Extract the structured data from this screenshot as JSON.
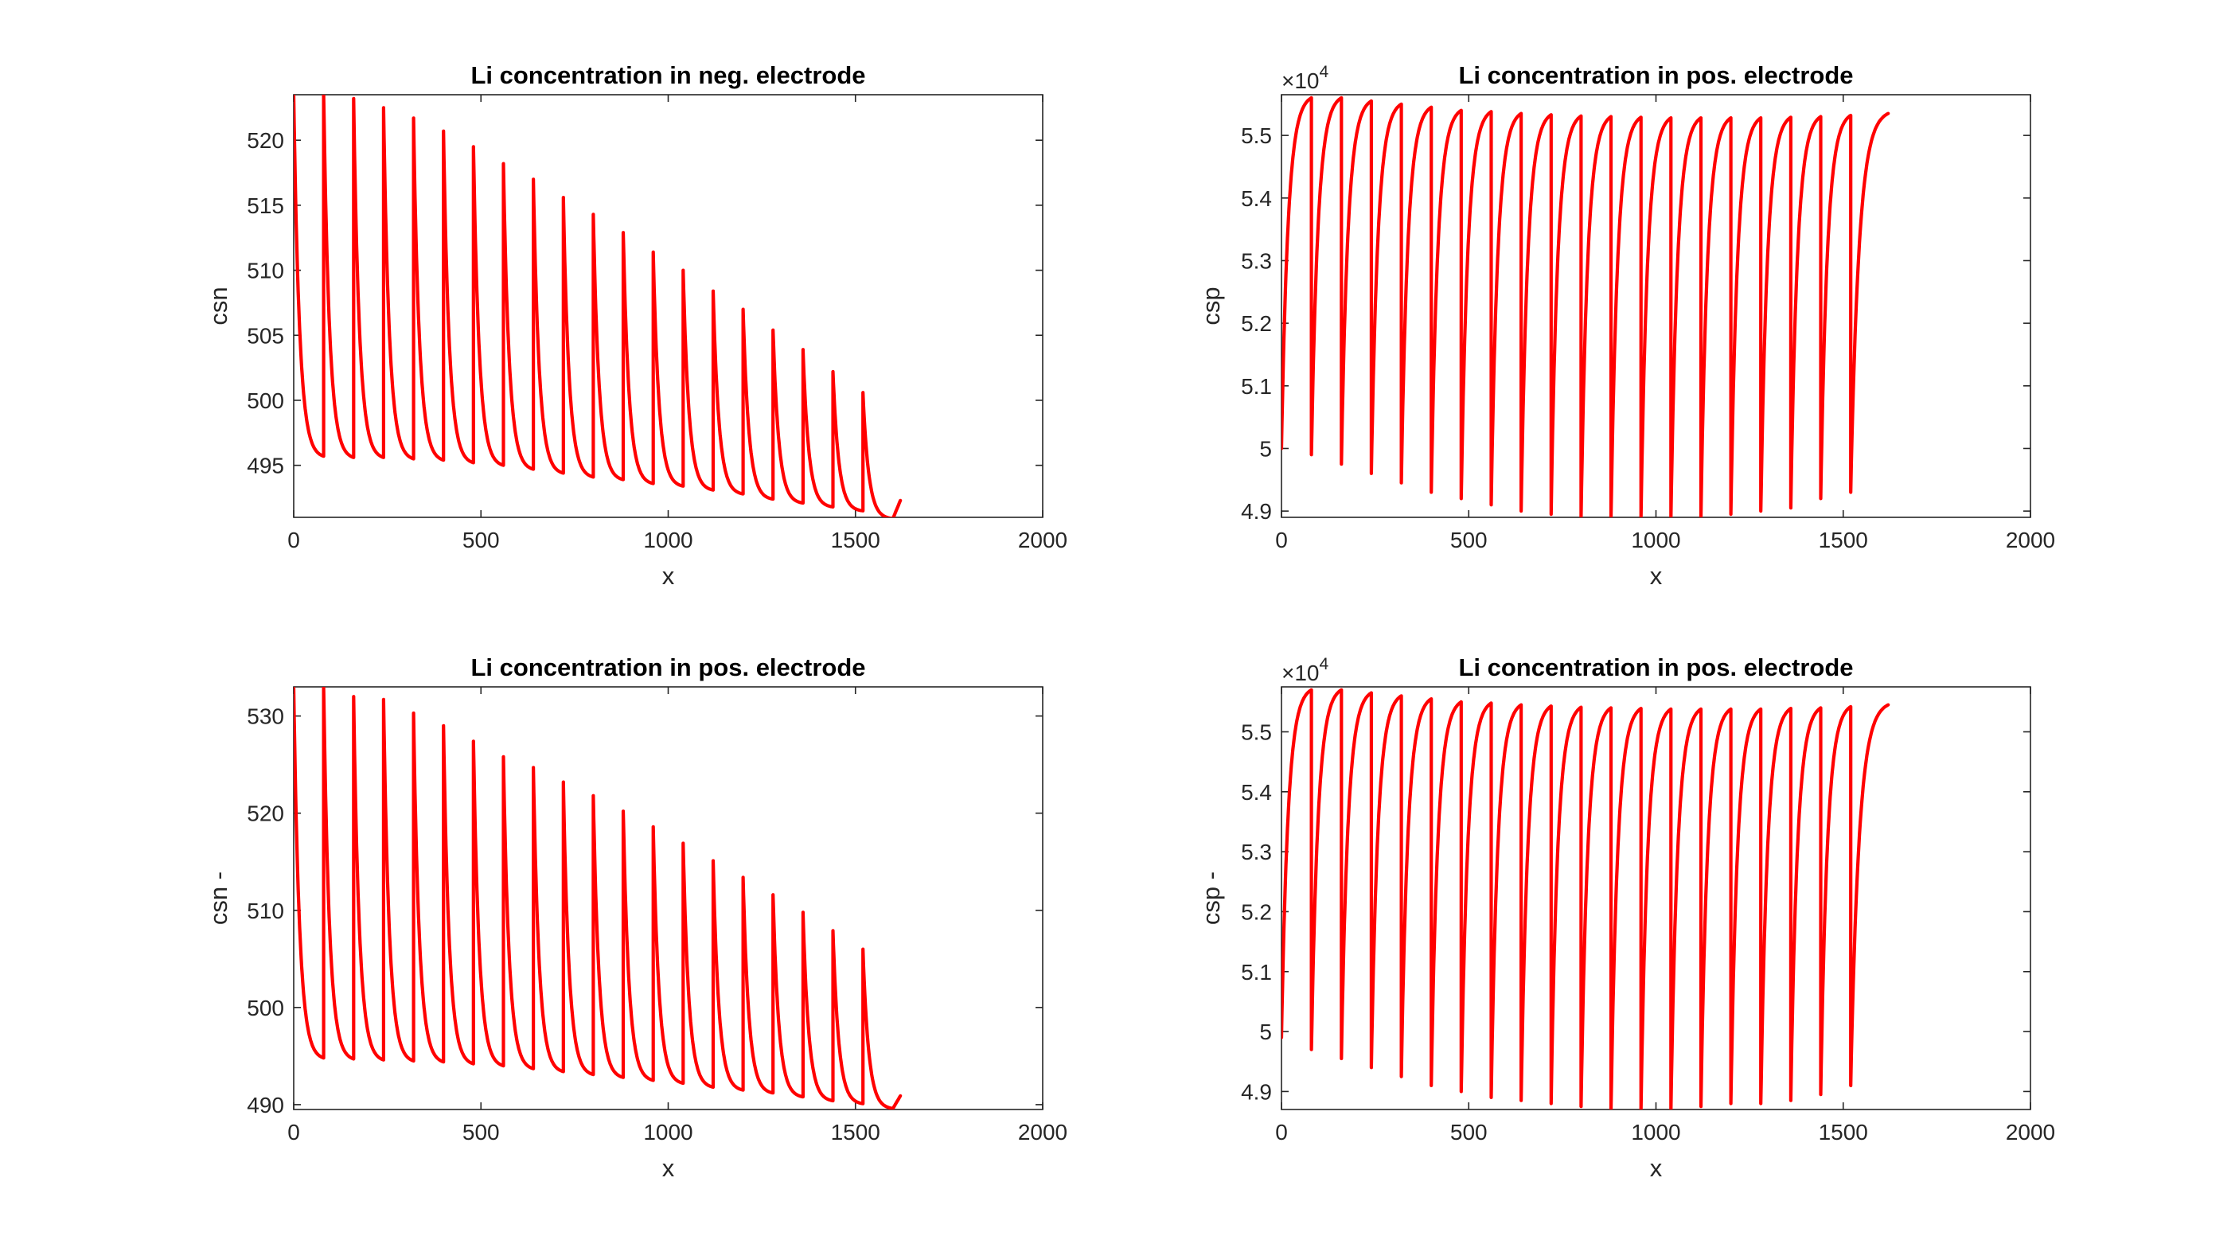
{
  "colors": {
    "line": "#ff0000",
    "axes": "#262626",
    "background": "#ffffff"
  },
  "chart_data": [
    {
      "type": "line",
      "title": "Li concentration in neg. electrode",
      "xlabel": "x",
      "ylabel": "csn",
      "exponent": "",
      "xlim": [
        0,
        2000
      ],
      "ylim": [
        491,
        523.5
      ],
      "xticks": [
        0,
        500,
        1000,
        1500,
        2000
      ],
      "xtick_labels": [
        "0",
        "500",
        "1000",
        "1500",
        "2000"
      ],
      "yticks": [
        495,
        500,
        505,
        510,
        515,
        520
      ],
      "ytick_labels": [
        "495",
        "500",
        "505",
        "510",
        "515",
        "520"
      ],
      "grid": false,
      "legend": "none",
      "waveform": "decay",
      "x_end": 1620,
      "series": [
        {
          "cycle_start_x": [
            0,
            80,
            160,
            240,
            320,
            400,
            480,
            560,
            640,
            720,
            800,
            880,
            960,
            1040,
            1120,
            1200,
            1280,
            1360,
            1440,
            1520
          ],
          "cycle_peak": [
            523.5,
            523.6,
            523.2,
            522.5,
            521.7,
            520.7,
            519.5,
            518.2,
            517.0,
            515.6,
            514.3,
            512.9,
            511.4,
            510.0,
            508.4,
            507.0,
            505.4,
            503.9,
            502.2,
            500.6
          ],
          "cycle_trough": [
            495.7,
            495.6,
            495.6,
            495.5,
            495.4,
            495.2,
            495.0,
            494.7,
            494.4,
            494.1,
            493.9,
            493.6,
            493.4,
            493.1,
            492.8,
            492.4,
            492.1,
            491.8,
            491.5,
            490.9
          ],
          "final_y": 492.3
        }
      ]
    },
    {
      "type": "line",
      "title": "Li concentration in pos. electrode",
      "xlabel": "x",
      "ylabel": "csp",
      "exponent": "×10",
      "exponent_power": "4",
      "xlim": [
        0,
        2000
      ],
      "ylim": [
        4.89,
        5.565
      ],
      "xticks": [
        0,
        500,
        1000,
        1500,
        2000
      ],
      "xtick_labels": [
        "0",
        "500",
        "1000",
        "1500",
        "2000"
      ],
      "yticks": [
        4.9,
        5.0,
        5.1,
        5.2,
        5.3,
        5.4,
        5.5
      ],
      "ytick_labels": [
        "4.9",
        "5",
        "5.1",
        "5.2",
        "5.3",
        "5.4",
        "5.5"
      ],
      "grid": false,
      "legend": "none",
      "waveform": "rise",
      "x_end": 1620,
      "series": [
        {
          "cycle_start_x": [
            0,
            80,
            160,
            240,
            320,
            400,
            480,
            560,
            640,
            720,
            800,
            880,
            960,
            1040,
            1120,
            1200,
            1280,
            1360,
            1440,
            1520
          ],
          "cycle_trough": [
            5.0,
            4.99,
            4.975,
            4.96,
            4.945,
            4.93,
            4.92,
            4.91,
            4.9,
            4.895,
            4.89,
            4.89,
            4.89,
            4.89,
            4.89,
            4.895,
            4.9,
            4.905,
            4.92,
            4.93
          ],
          "cycle_peak": [
            5.56,
            5.56,
            5.555,
            5.55,
            5.545,
            5.54,
            5.538,
            5.535,
            5.533,
            5.531,
            5.53,
            5.529,
            5.528,
            5.528,
            5.528,
            5.528,
            5.529,
            5.53,
            5.532,
            5.535
          ]
        }
      ]
    },
    {
      "type": "line",
      "title": "Li concentration in pos. electrode",
      "xlabel": "x",
      "ylabel": "csn -",
      "exponent": "",
      "xlim": [
        0,
        2000
      ],
      "ylim": [
        489.5,
        533
      ],
      "xticks": [
        0,
        500,
        1000,
        1500,
        2000
      ],
      "xtick_labels": [
        "0",
        "500",
        "1000",
        "1500",
        "2000"
      ],
      "yticks": [
        490,
        500,
        510,
        520,
        530
      ],
      "ytick_labels": [
        "490",
        "500",
        "510",
        "520",
        "530"
      ],
      "grid": false,
      "legend": "none",
      "waveform": "decay",
      "x_end": 1620,
      "series": [
        {
          "cycle_start_x": [
            0,
            80,
            160,
            240,
            320,
            400,
            480,
            560,
            640,
            720,
            800,
            880,
            960,
            1040,
            1120,
            1200,
            1280,
            1360,
            1440,
            1520
          ],
          "cycle_peak": [
            533,
            533,
            532,
            531.7,
            530.3,
            529,
            527.4,
            525.8,
            524.7,
            523.2,
            521.8,
            520.2,
            518.6,
            516.9,
            515.1,
            513.4,
            511.6,
            509.8,
            507.9,
            506
          ],
          "cycle_trough": [
            494.8,
            494.7,
            494.6,
            494.5,
            494.4,
            494.2,
            494.0,
            493.7,
            493.4,
            493.1,
            492.8,
            492.5,
            492.2,
            491.8,
            491.5,
            491.2,
            490.8,
            490.4,
            490.1,
            489.6
          ],
          "final_y": 490.9
        }
      ]
    },
    {
      "type": "line",
      "title": "Li concentration in pos. electrode",
      "xlabel": "x",
      "ylabel": "csp -",
      "exponent": "×10",
      "exponent_power": "4",
      "xlim": [
        0,
        2000
      ],
      "ylim": [
        4.87,
        5.575
      ],
      "xticks": [
        0,
        500,
        1000,
        1500,
        2000
      ],
      "xtick_labels": [
        "0",
        "500",
        "1000",
        "1500",
        "2000"
      ],
      "yticks": [
        4.9,
        5.0,
        5.1,
        5.2,
        5.3,
        5.4,
        5.5
      ],
      "ytick_labels": [
        "4.9",
        "5",
        "5.1",
        "5.2",
        "5.3",
        "5.4",
        "5.5"
      ],
      "grid": false,
      "legend": "none",
      "waveform": "rise",
      "x_end": 1620,
      "series": [
        {
          "cycle_start_x": [
            0,
            80,
            160,
            240,
            320,
            400,
            480,
            560,
            640,
            720,
            800,
            880,
            960,
            1040,
            1120,
            1200,
            1280,
            1360,
            1440,
            1520
          ],
          "cycle_trough": [
            4.99,
            4.97,
            4.955,
            4.94,
            4.925,
            4.91,
            4.9,
            4.89,
            4.885,
            4.88,
            4.875,
            4.87,
            4.87,
            4.87,
            4.875,
            4.88,
            4.88,
            4.885,
            4.895,
            4.91
          ],
          "cycle_peak": [
            5.57,
            5.57,
            5.565,
            5.56,
            5.555,
            5.55,
            5.548,
            5.545,
            5.543,
            5.541,
            5.54,
            5.539,
            5.538,
            5.538,
            5.538,
            5.538,
            5.539,
            5.54,
            5.542,
            5.545
          ]
        }
      ]
    }
  ]
}
